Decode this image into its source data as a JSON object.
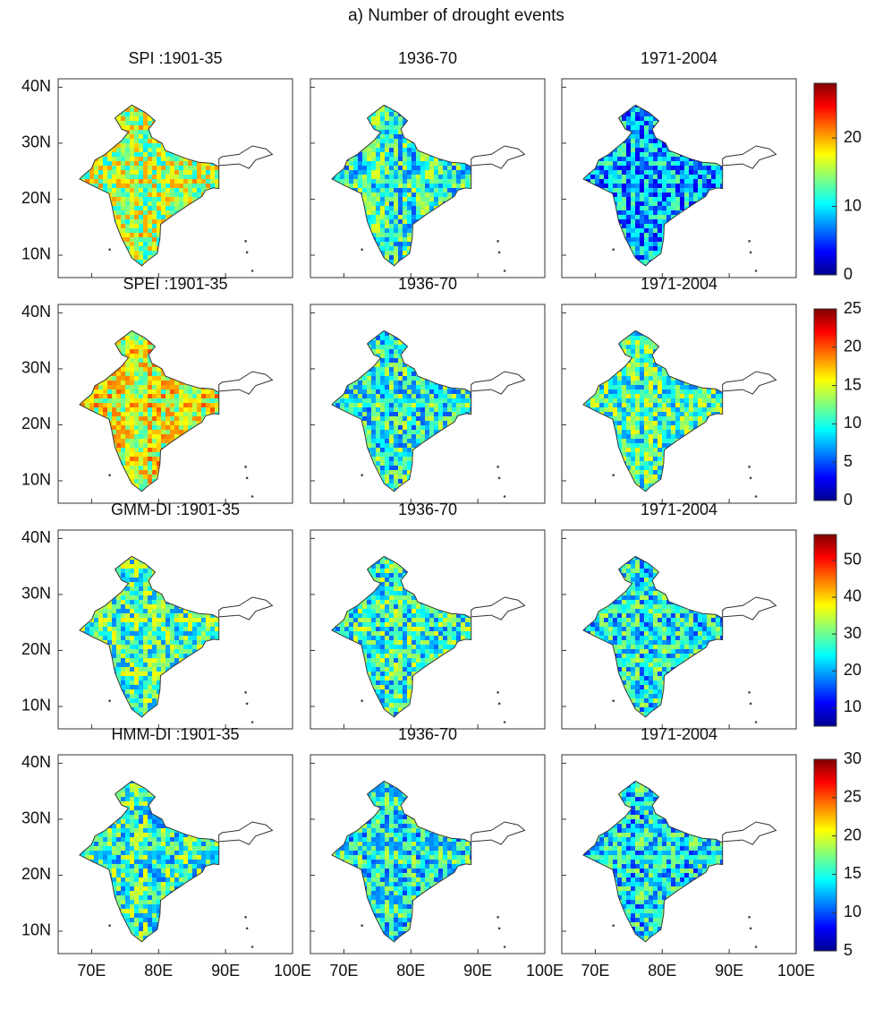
{
  "title": "a)    Number of drought events",
  "lon": {
    "lim": [
      65,
      100
    ],
    "ticks": [
      {
        "value": 70,
        "label": "70E"
      },
      {
        "value": 80,
        "label": "80E"
      },
      {
        "value": 90,
        "label": "90E"
      },
      {
        "value": 100,
        "label": "100E"
      }
    ]
  },
  "lat": {
    "lim": [
      6,
      41.5
    ],
    "ticks": [
      {
        "value": 10,
        "label": "10N"
      },
      {
        "value": 20,
        "label": "20N"
      },
      {
        "value": 30,
        "label": "30N"
      },
      {
        "value": 40,
        "label": "40N"
      }
    ]
  },
  "rows": [
    {
      "panels": [
        "SPI :1901-35",
        "1936-70",
        "1971-2004"
      ],
      "colorbar": {
        "lim": [
          0,
          28
        ],
        "ticks": [
          0,
          10,
          20
        ]
      }
    },
    {
      "panels": [
        "SPEI :1901-35",
        "1936-70",
        "1971-2004"
      ],
      "colorbar": {
        "lim": [
          0,
          25
        ],
        "ticks": [
          0,
          5,
          10,
          15,
          20,
          25
        ]
      }
    },
    {
      "panels": [
        "GMM-DI :1901-35",
        "1936-70",
        "1971-2004"
      ],
      "colorbar": {
        "lim": [
          5,
          57
        ],
        "ticks": [
          10,
          20,
          30,
          40,
          50
        ]
      }
    },
    {
      "panels": [
        "HMM-DI :1901-35",
        "1936-70",
        "1971-2004"
      ],
      "colorbar": {
        "lim": [
          5,
          30
        ],
        "ticks": [
          5,
          10,
          15,
          20,
          25,
          30
        ]
      }
    }
  ]
}
